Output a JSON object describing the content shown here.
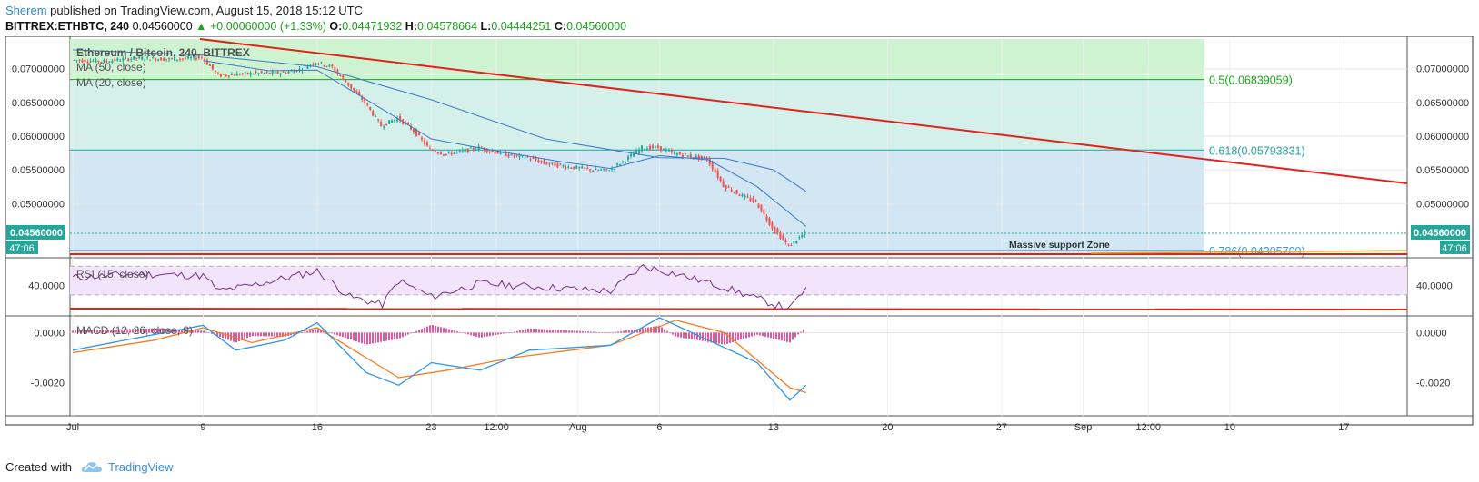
{
  "header": {
    "author": "Sherem",
    "published": "published on TradingView.com, August 15, 2018 15:12 UTC"
  },
  "symbol_line": {
    "symbol": "BITTREX:ETHBTC, 240",
    "last": "0.04560000",
    "change": "▲ +0.00060000 (+1.33%)",
    "o_label": "O:",
    "o": "0.04471932",
    "h_label": "H:",
    "h": "0.04578664",
    "l_label": "L:",
    "l": "0.04444251",
    "c_label": "C:",
    "c": "0.04560000"
  },
  "footer": {
    "created_with": "Created with",
    "brand": "TradingView"
  },
  "colors": {
    "up": "#26a69a",
    "down": "#ef5350",
    "trend": "#e0231b",
    "ma": "#3c79c8",
    "fib_top": "#cdf3d0",
    "fib_mid": "#d3f0ea",
    "fib_low": "#d2e6f4",
    "support": "#e6e6e6",
    "rsi": "#7a2c91",
    "macd": "#2f95e8",
    "signal": "#f57c1f",
    "hist": "#d6338a"
  },
  "chart_data": {
    "type": "line",
    "title": "Ethereum / Bitcoin, 240, BITTREX",
    "indicators": [
      "MA (50, close)",
      "MA (20, close)",
      "RSI (15, close)",
      "MACD (12, 26, close, 9)"
    ],
    "x_ticks": [
      "Jul",
      "9",
      "16",
      "23",
      "12:00",
      "Aug",
      "6",
      "13",
      "20",
      "27",
      "Sep",
      "12:00",
      "10",
      "17"
    ],
    "y_ticks": [
      "0.07000000",
      "0.06500000",
      "0.06000000",
      "0.05500000",
      "0.05000000"
    ],
    "ylim": [
      0.0425,
      0.0744
    ],
    "last_price_label": "0.04560000",
    "countdown": "47:06",
    "fib_levels": [
      {
        "label": "0.5(0.06839059)",
        "value": 0.06839059,
        "color": "#1aa51a"
      },
      {
        "label": "0.618(0.05793831)",
        "value": 0.05793831,
        "color": "#22a39b"
      },
      {
        "label": "0.786(0.04305709)",
        "value": 0.04305709,
        "color": "#3a9ad9"
      }
    ],
    "support_zone_label": "Massive support Zone",
    "price_path": [
      [
        "Jul 1",
        0.0713
      ],
      [
        "Jul 3",
        0.0711
      ],
      [
        "Jul 5",
        0.0716
      ],
      [
        "Jul 7",
        0.0714
      ],
      [
        "Jul 9",
        0.0717
      ],
      [
        "Jul 10",
        0.069
      ],
      [
        "Jul 12",
        0.0693
      ],
      [
        "Jul 14",
        0.0694
      ],
      [
        "Jul 15",
        0.0699
      ],
      [
        "Jul 16",
        0.071
      ],
      [
        "Jul 17",
        0.0702
      ],
      [
        "Jul 18",
        0.0676
      ],
      [
        "Jul 19",
        0.065
      ],
      [
        "Jul 20",
        0.0615
      ],
      [
        "Jul 21",
        0.0627
      ],
      [
        "Jul 22",
        0.0608
      ],
      [
        "Jul 23",
        0.058
      ],
      [
        "Jul 24",
        0.0573
      ],
      [
        "Jul 25",
        0.0578
      ],
      [
        "Jul 26",
        0.0583
      ],
      [
        "Jul 27",
        0.0576
      ],
      [
        "Jul 28",
        0.0571
      ],
      [
        "Jul 29",
        0.0568
      ],
      [
        "Jul 30",
        0.056
      ],
      [
        "Jul 31",
        0.0556
      ],
      [
        "Aug 1",
        0.0553
      ],
      [
        "Aug 2",
        0.055
      ],
      [
        "Aug 3",
        0.0549
      ],
      [
        "Aug 4",
        0.0565
      ],
      [
        "Aug 5",
        0.0583
      ],
      [
        "Aug 6",
        0.0583
      ],
      [
        "Aug 7",
        0.0574
      ],
      [
        "Aug 8",
        0.057
      ],
      [
        "Aug 9",
        0.0566
      ],
      [
        "Aug 10",
        0.0527
      ],
      [
        "Aug 11",
        0.0513
      ],
      [
        "Aug 12",
        0.0502
      ],
      [
        "Aug 13",
        0.0465
      ],
      [
        "Aug 14",
        0.0437
      ],
      [
        "Aug 15",
        0.0456
      ]
    ],
    "ma50_path": [
      [
        "Jul 1",
        0.0728
      ],
      [
        "Jul 9",
        0.072
      ],
      [
        "Jul 16",
        0.0703
      ],
      [
        "Jul 23",
        0.0654
      ],
      [
        "Jul 30",
        0.0596
      ],
      [
        "Aug 6",
        0.0568
      ],
      [
        "Aug 10",
        0.0567
      ],
      [
        "Aug 13",
        0.055
      ],
      [
        "Aug 15",
        0.0518
      ]
    ],
    "ma20_path": [
      [
        "Jul 9",
        0.0712
      ],
      [
        "Jul 13",
        0.0697
      ],
      [
        "Jul 16",
        0.0698
      ],
      [
        "Jul 20",
        0.064
      ],
      [
        "Jul 23",
        0.0596
      ],
      [
        "Jul 27",
        0.0578
      ],
      [
        "Jul 31",
        0.0562
      ],
      [
        "Aug 3",
        0.0552
      ],
      [
        "Aug 6",
        0.0571
      ],
      [
        "Aug 9",
        0.0565
      ],
      [
        "Aug 12",
        0.0525
      ],
      [
        "Aug 15",
        0.0466
      ]
    ],
    "rsi": {
      "label": "RSI (15, close)",
      "tick": "40.0000",
      "path": [
        [
          "Jul 1",
          48
        ],
        [
          "Jul 5",
          52
        ],
        [
          "Jul 9",
          50
        ],
        [
          "Jul 10",
          34
        ],
        [
          "Jul 12",
          40
        ],
        [
          "Jul 16",
          55
        ],
        [
          "Jul 18",
          28
        ],
        [
          "Jul 20",
          20
        ],
        [
          "Jul 21",
          45
        ],
        [
          "Jul 23",
          28
        ],
        [
          "Jul 26",
          42
        ],
        [
          "Jul 30",
          38
        ],
        [
          "Aug 3",
          34
        ],
        [
          "Aug 5",
          60
        ],
        [
          "Aug 7",
          52
        ],
        [
          "Aug 10",
          38
        ],
        [
          "Aug 12",
          26
        ],
        [
          "Aug 14",
          15
        ],
        [
          "Aug 15",
          38
        ]
      ]
    },
    "macd": {
      "label": "MACD (12, 26, close, 9)",
      "ticks": [
        "0.0000",
        "-0.0020"
      ],
      "macd_path": [
        [
          "Jul 1",
          -0.0007
        ],
        [
          "Jul 5",
          -0.0002
        ],
        [
          "Jul 9",
          0.0003
        ],
        [
          "Jul 11",
          -0.0007
        ],
        [
          "Jul 14",
          -0.0003
        ],
        [
          "Jul 16",
          0.0004
        ],
        [
          "Jul 19",
          -0.0016
        ],
        [
          "Jul 21",
          -0.0021
        ],
        [
          "Jul 23",
          -0.0012
        ],
        [
          "Jul 26",
          -0.0015
        ],
        [
          "Jul 29",
          -0.0007
        ],
        [
          "Aug 3",
          -0.0005
        ],
        [
          "Aug 6",
          0.0006
        ],
        [
          "Aug 9",
          -0.0003
        ],
        [
          "Aug 12",
          -0.0012
        ],
        [
          "Aug 14",
          -0.0027
        ],
        [
          "Aug 15",
          -0.0021
        ]
      ],
      "signal_path": [
        [
          "Jul 1",
          -0.0008
        ],
        [
          "Jul 6",
          -0.0003
        ],
        [
          "Jul 9",
          0.0002
        ],
        [
          "Jul 12",
          -0.0004
        ],
        [
          "Jul 16",
          0.0002
        ],
        [
          "Jul 19",
          -0.001
        ],
        [
          "Jul 21",
          -0.0018
        ],
        [
          "Jul 24",
          -0.0015
        ],
        [
          "Jul 28",
          -0.001
        ],
        [
          "Aug 3",
          -0.0005
        ],
        [
          "Aug 7",
          0.0005
        ],
        [
          "Aug 10",
          0.0
        ],
        [
          "Aug 12",
          -0.0011
        ],
        [
          "Aug 14",
          -0.0022
        ],
        [
          "Aug 15",
          -0.0024
        ]
      ]
    }
  }
}
